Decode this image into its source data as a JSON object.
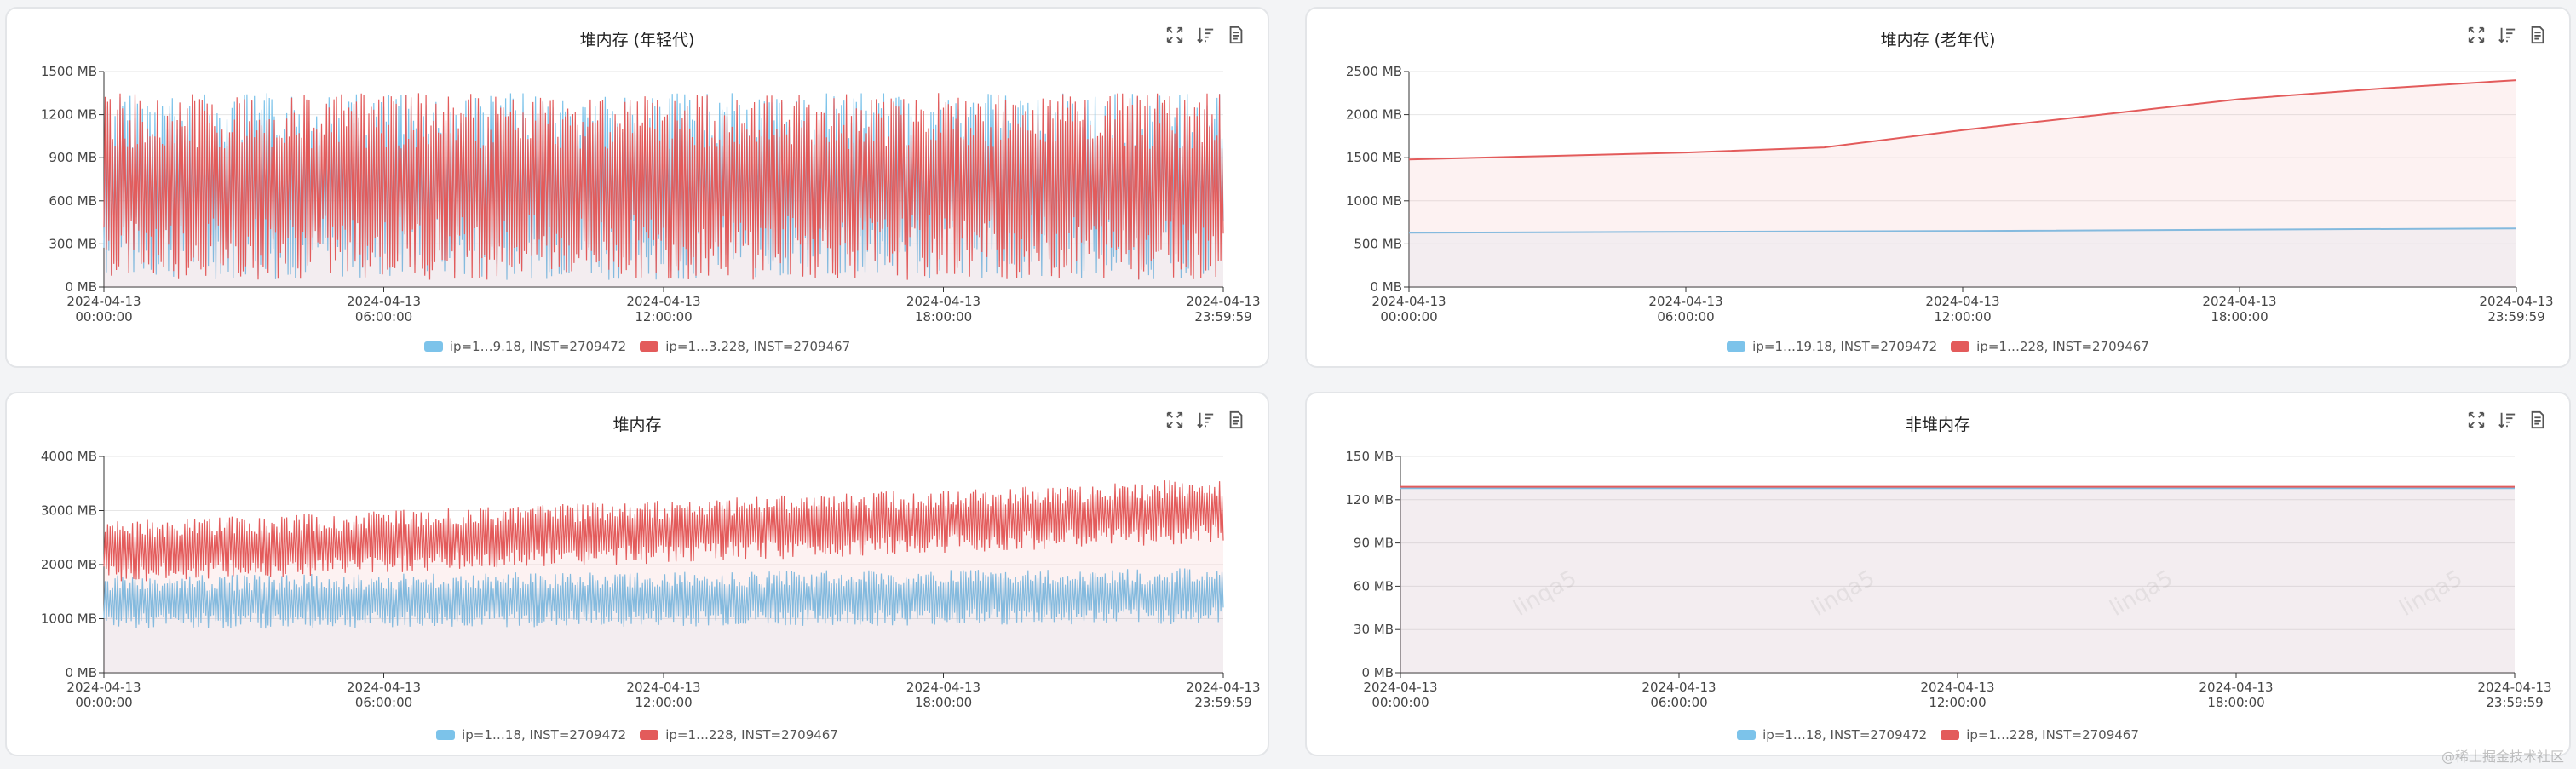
{
  "chart_data": [
    {
      "type": "area",
      "title": "堆内存 (年轻代)",
      "ylim": [
        0,
        1500
      ],
      "yticks": [
        "0 MB",
        "300 MB",
        "600 MB",
        "900 MB",
        "1200 MB",
        "1500 MB"
      ],
      "xticks": [
        [
          "2024-04-13",
          "00:00:00"
        ],
        [
          "2024-04-13",
          "06:00:00"
        ],
        [
          "2024-04-13",
          "12:00:00"
        ],
        [
          "2024-04-13",
          "18:00:00"
        ],
        [
          "2024-04-13",
          "23:59:59"
        ]
      ],
      "grid": true,
      "legend_position": "bottom",
      "series": [
        {
          "name": "ip=1…9.18, INST=2709472",
          "color": "#7cc3ea",
          "pattern": "sawtooth",
          "min": 50,
          "max": 1350
        },
        {
          "name": "ip=1…3.228, INST=2709467",
          "color": "#e35b5b",
          "pattern": "sawtooth",
          "min": 50,
          "max": 1350
        }
      ]
    },
    {
      "type": "area",
      "title": "堆内存 (老年代)",
      "ylim": [
        0,
        2500
      ],
      "yticks": [
        "0 MB",
        "500 MB",
        "1000 MB",
        "1500 MB",
        "2000 MB",
        "2500 MB"
      ],
      "xticks": [
        [
          "2024-04-13",
          "00:00:00"
        ],
        [
          "2024-04-13",
          "06:00:00"
        ],
        [
          "2024-04-13",
          "12:00:00"
        ],
        [
          "2024-04-13",
          "18:00:00"
        ],
        [
          "2024-04-13",
          "23:59:59"
        ]
      ],
      "grid": true,
      "legend_position": "bottom",
      "series": [
        {
          "name": "ip=1…19.18, INST=2709472",
          "color": "#7cc3ea",
          "points": [
            [
              0,
              630
            ],
            [
              12,
              650
            ],
            [
              24,
              680
            ]
          ]
        },
        {
          "name": "ip=1…228, INST=2709467",
          "color": "#e35b5b",
          "points": [
            [
              0,
              1480
            ],
            [
              3,
              1520
            ],
            [
              6,
              1560
            ],
            [
              9,
              1620
            ],
            [
              12,
              1820
            ],
            [
              15,
              2000
            ],
            [
              18,
              2180
            ],
            [
              21,
              2300
            ],
            [
              24,
              2400
            ]
          ]
        }
      ]
    },
    {
      "type": "area",
      "title": "堆内存",
      "ylim": [
        0,
        4000
      ],
      "yticks": [
        "0 MB",
        "1000 MB",
        "2000 MB",
        "3000 MB",
        "4000 MB"
      ],
      "xticks": [
        [
          "2024-04-13",
          "00:00:00"
        ],
        [
          "2024-04-13",
          "06:00:00"
        ],
        [
          "2024-04-13",
          "12:00:00"
        ],
        [
          "2024-04-13",
          "18:00:00"
        ],
        [
          "2024-04-13",
          "23:59:59"
        ]
      ],
      "grid": true,
      "legend_position": "bottom",
      "series": [
        {
          "name": "ip=1…18, INST=2709472",
          "color": "#7cc3ea",
          "pattern": "band",
          "min_start": 800,
          "max_start": 1800,
          "min_end": 900,
          "max_end": 1950
        },
        {
          "name": "ip=1…228, INST=2709467",
          "color": "#e35b5b",
          "pattern": "band",
          "min_start": 1650,
          "max_start": 2800,
          "min_end": 2400,
          "max_end": 3600
        }
      ]
    },
    {
      "type": "area",
      "title": "非堆内存",
      "ylim": [
        0,
        150
      ],
      "yticks": [
        "0 MB",
        "30 MB",
        "60 MB",
        "90 MB",
        "120 MB",
        "150 MB"
      ],
      "xticks": [
        [
          "2024-04-13",
          "00:00:00"
        ],
        [
          "2024-04-13",
          "06:00:00"
        ],
        [
          "2024-04-13",
          "12:00:00"
        ],
        [
          "2024-04-13",
          "18:00:00"
        ],
        [
          "2024-04-13",
          "23:59:59"
        ]
      ],
      "grid": true,
      "legend_position": "bottom",
      "series": [
        {
          "name": "ip=1…18, INST=2709472",
          "color": "#7cc3ea",
          "points": [
            [
              0,
              128
            ],
            [
              24,
              128
            ]
          ]
        },
        {
          "name": "ip=1…228, INST=2709467",
          "color": "#e35b5b",
          "points": [
            [
              0,
              129
            ],
            [
              24,
              129
            ]
          ]
        }
      ]
    }
  ],
  "icons": [
    "fullscreen-icon",
    "sort-icon",
    "document-icon"
  ],
  "watermark": "linqa5",
  "corner_watermark": "@稀土掘金技术社区"
}
